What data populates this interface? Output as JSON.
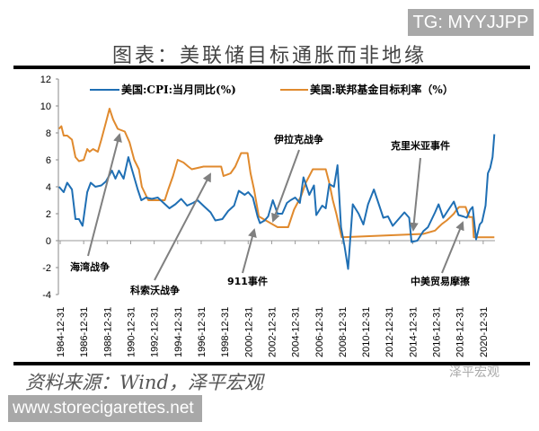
{
  "watermark_top": "TG: MYYJJPP",
  "title": "图表：美联储目标通胀而非地缘",
  "source": "资料来源：Wind，泽平宏观",
  "brand_watermark": "泽平宏观",
  "site_watermark": "www.storecigarettes.net",
  "chart_data": {
    "type": "line",
    "title": "图表：美联储目标通胀而非地缘",
    "xlabel": "",
    "ylabel": "",
    "ylim": [
      -4,
      12
    ],
    "yticks": [
      "12",
      "10",
      "8",
      "6",
      "4",
      "2",
      "0",
      "-2",
      "-4"
    ],
    "xticks": [
      "1984-12-31",
      "1986-12-31",
      "1988-12-31",
      "1990-12-31",
      "1992-12-31",
      "1994-12-31",
      "1996-12-31",
      "1998-12-31",
      "2000-12-31",
      "2002-12-31",
      "2004-12-31",
      "2006-12-31",
      "2008-12-31",
      "2010-12-31",
      "2012-12-31",
      "2014-12-31",
      "2016-12-31",
      "2018-12-31",
      "2020-12-31"
    ],
    "legend_position": "top",
    "grid": false,
    "series": [
      {
        "name": "美国:CPI:当月同比(%)",
        "color": "#1f6fb4",
        "points": [
          [
            1984.9,
            4.0
          ],
          [
            1985.3,
            3.6
          ],
          [
            1985.6,
            4.3
          ],
          [
            1986.0,
            3.8
          ],
          [
            1986.3,
            1.6
          ],
          [
            1986.6,
            1.6
          ],
          [
            1986.9,
            1.1
          ],
          [
            1987.3,
            3.6
          ],
          [
            1987.6,
            4.3
          ],
          [
            1988.0,
            4.0
          ],
          [
            1988.5,
            4.1
          ],
          [
            1988.9,
            4.4
          ],
          [
            1989.4,
            5.2
          ],
          [
            1989.7,
            4.6
          ],
          [
            1990.0,
            5.2
          ],
          [
            1990.4,
            4.6
          ],
          [
            1990.8,
            6.2
          ],
          [
            1991.2,
            5.0
          ],
          [
            1991.6,
            3.8
          ],
          [
            1991.9,
            3.0
          ],
          [
            1992.3,
            3.2
          ],
          [
            1992.8,
            3.1
          ],
          [
            1993.3,
            3.2
          ],
          [
            1993.8,
            2.8
          ],
          [
            1994.3,
            2.4
          ],
          [
            1994.8,
            2.7
          ],
          [
            1995.3,
            3.1
          ],
          [
            1995.8,
            2.6
          ],
          [
            1996.3,
            2.8
          ],
          [
            1996.7,
            3.0
          ],
          [
            1997.3,
            2.5
          ],
          [
            1997.8,
            2.1
          ],
          [
            1998.2,
            1.5
          ],
          [
            1998.8,
            1.6
          ],
          [
            1999.3,
            2.2
          ],
          [
            1999.8,
            2.6
          ],
          [
            2000.2,
            3.7
          ],
          [
            2000.7,
            3.4
          ],
          [
            2001.0,
            3.6
          ],
          [
            2001.4,
            3.2
          ],
          [
            2001.8,
            1.8
          ],
          [
            2002.0,
            1.3
          ],
          [
            2002.4,
            1.5
          ],
          [
            2002.7,
            1.8
          ],
          [
            2003.1,
            3.0
          ],
          [
            2003.5,
            2.0
          ],
          [
            2003.9,
            2.0
          ],
          [
            2004.3,
            2.8
          ],
          [
            2004.6,
            3.0
          ],
          [
            2005.0,
            3.2
          ],
          [
            2005.4,
            2.8
          ],
          [
            2005.7,
            4.7
          ],
          [
            2006.2,
            3.4
          ],
          [
            2006.6,
            4.1
          ],
          [
            2006.8,
            1.9
          ],
          [
            2007.3,
            2.6
          ],
          [
            2007.6,
            2.4
          ],
          [
            2007.9,
            4.2
          ],
          [
            2008.3,
            4.0
          ],
          [
            2008.6,
            5.6
          ],
          [
            2008.9,
            1.0
          ],
          [
            2009.2,
            -0.4
          ],
          [
            2009.5,
            -2.1
          ],
          [
            2009.9,
            2.7
          ],
          [
            2010.4,
            2.0
          ],
          [
            2010.8,
            1.2
          ],
          [
            2011.2,
            2.7
          ],
          [
            2011.7,
            3.8
          ],
          [
            2012.0,
            3.0
          ],
          [
            2012.5,
            1.7
          ],
          [
            2012.9,
            1.8
          ],
          [
            2013.3,
            1.1
          ],
          [
            2013.7,
            1.5
          ],
          [
            2014.3,
            2.1
          ],
          [
            2014.7,
            1.7
          ],
          [
            2014.9,
            -0.1
          ],
          [
            2015.4,
            0.0
          ],
          [
            2015.9,
            0.7
          ],
          [
            2016.3,
            1.0
          ],
          [
            2016.9,
            2.1
          ],
          [
            2017.2,
            2.7
          ],
          [
            2017.6,
            1.7
          ],
          [
            2017.9,
            2.1
          ],
          [
            2018.5,
            2.9
          ],
          [
            2018.9,
            1.9
          ],
          [
            2019.3,
            1.8
          ],
          [
            2019.6,
            1.7
          ],
          [
            2019.9,
            2.3
          ],
          [
            2020.1,
            2.5
          ],
          [
            2020.4,
            0.1
          ],
          [
            2020.7,
            1.2
          ],
          [
            2020.9,
            1.4
          ],
          [
            2021.2,
            2.6
          ],
          [
            2021.4,
            5.0
          ],
          [
            2021.6,
            5.4
          ],
          [
            2021.8,
            6.2
          ],
          [
            2021.95,
            7.9
          ]
        ]
      },
      {
        "name": "美国:联邦基金目标利率（%）",
        "color": "#e08a2e",
        "points": [
          [
            1984.9,
            8.3
          ],
          [
            1985.1,
            8.5
          ],
          [
            1985.3,
            7.8
          ],
          [
            1985.6,
            7.8
          ],
          [
            1986.0,
            7.5
          ],
          [
            1986.3,
            6.2
          ],
          [
            1986.6,
            5.9
          ],
          [
            1987.0,
            6.0
          ],
          [
            1987.3,
            6.8
          ],
          [
            1987.5,
            6.6
          ],
          [
            1987.8,
            6.8
          ],
          [
            1988.2,
            6.6
          ],
          [
            1988.5,
            7.5
          ],
          [
            1988.9,
            8.8
          ],
          [
            1989.2,
            9.8
          ],
          [
            1989.5,
            9.0
          ],
          [
            1989.9,
            8.3
          ],
          [
            1990.5,
            8.1
          ],
          [
            1990.9,
            7.3
          ],
          [
            1991.3,
            6.0
          ],
          [
            1991.7,
            5.3
          ],
          [
            1991.95,
            4.0
          ],
          [
            1992.5,
            3.0
          ],
          [
            1993.9,
            3.0
          ],
          [
            1994.2,
            3.8
          ],
          [
            1994.6,
            4.8
          ],
          [
            1995.0,
            6.0
          ],
          [
            1995.5,
            5.8
          ],
          [
            1995.9,
            5.5
          ],
          [
            1996.2,
            5.3
          ],
          [
            1997.2,
            5.5
          ],
          [
            1998.7,
            5.5
          ],
          [
            1998.9,
            4.8
          ],
          [
            1999.5,
            5.0
          ],
          [
            1999.9,
            5.5
          ],
          [
            2000.4,
            6.5
          ],
          [
            2000.95,
            6.5
          ],
          [
            2001.2,
            5.0
          ],
          [
            2001.5,
            3.8
          ],
          [
            2001.9,
            1.8
          ],
          [
            2002.9,
            1.3
          ],
          [
            2003.5,
            1.0
          ],
          [
            2004.4,
            1.0
          ],
          [
            2004.9,
            2.3
          ],
          [
            2005.5,
            3.3
          ],
          [
            2005.9,
            4.3
          ],
          [
            2006.5,
            5.3
          ],
          [
            2007.6,
            5.3
          ],
          [
            2007.9,
            4.3
          ],
          [
            2008.2,
            3.0
          ],
          [
            2008.5,
            2.0
          ],
          [
            2008.95,
            0.25
          ],
          [
            2015.9,
            0.5
          ],
          [
            2016.9,
            0.75
          ],
          [
            2017.2,
            1.0
          ],
          [
            2017.5,
            1.25
          ],
          [
            2017.9,
            1.5
          ],
          [
            2018.2,
            1.75
          ],
          [
            2018.5,
            2.0
          ],
          [
            2018.7,
            2.25
          ],
          [
            2018.95,
            2.5
          ],
          [
            2019.5,
            2.5
          ],
          [
            2019.6,
            2.25
          ],
          [
            2019.8,
            1.75
          ],
          [
            2020.1,
            1.75
          ],
          [
            2020.2,
            0.25
          ],
          [
            2021.95,
            0.25
          ]
        ]
      }
    ],
    "annotations": [
      "海湾战争",
      "科索沃战争",
      "911事件",
      "伊拉克战争",
      "克里米亚事件",
      "中美贸易摩擦"
    ]
  }
}
